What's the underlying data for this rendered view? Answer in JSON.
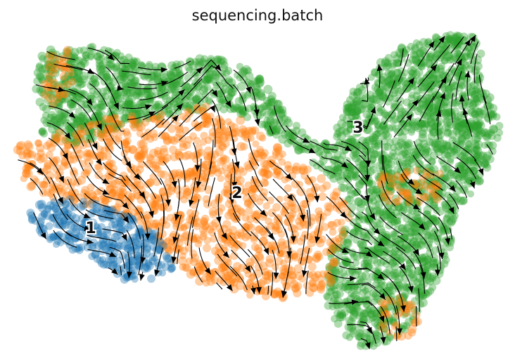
{
  "chart_data": {
    "type": "scatter",
    "title": "sequencing.batch",
    "xlabel": "",
    "ylabel": "",
    "axes_visible": false,
    "grid": false,
    "legend": "none",
    "overlay": "velocity streamlines with arrowheads",
    "series": [
      {
        "key": "1",
        "color": "#1f77b4"
      },
      {
        "key": "2",
        "color": "#ff7f0e"
      },
      {
        "key": "3",
        "color": "#2ca02c"
      }
    ],
    "cluster_labels": [
      {
        "text": "1",
        "series": "1"
      },
      {
        "text": "2",
        "series": "2"
      },
      {
        "text": "3",
        "series": "3"
      }
    ]
  }
}
